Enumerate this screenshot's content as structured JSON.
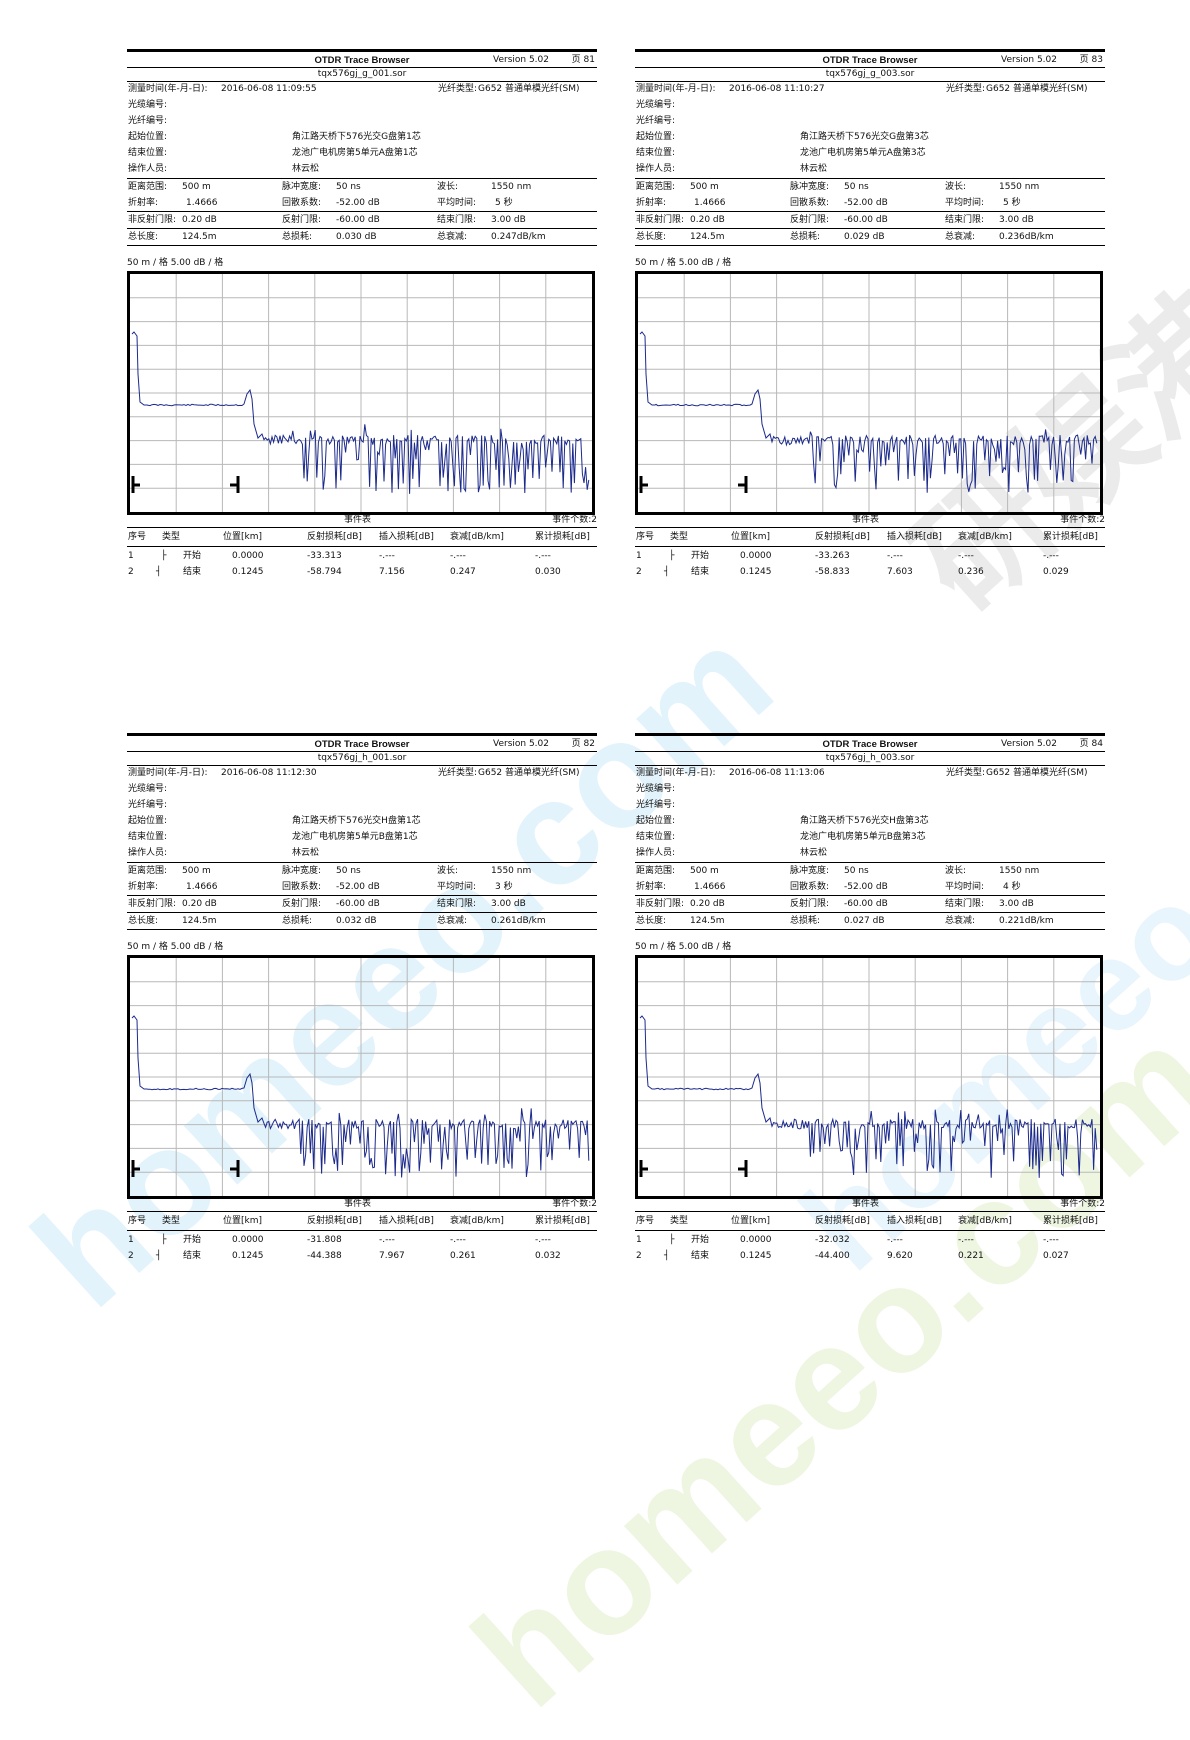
{
  "labels": {
    "measure_time": "测量时间(年-月-日):",
    "fiber_type": "光纤类型:",
    "cable_no": "光缆编号:",
    "fiber_no": "光纤编号:",
    "start_loc": "起始位置:",
    "end_loc": "结束位置:",
    "operator": "操作人员:",
    "range": "距离范围:",
    "pulse": "脉冲宽度:",
    "wavelength": "波长:",
    "ior": "折射率:",
    "backscatter": "回散系数:",
    "avg_time": "平均时间:",
    "nonrefl": "非反射门限:",
    "refl": "反射门限:",
    "end_thresh": "结束门限:",
    "total_len": "总长度:",
    "total_loss": "总损耗:",
    "total_atten": "总衰减:",
    "scale": "50 m / 格 5.00 dB / 格",
    "event_table": "事件表",
    "event_count": "事件个数:2",
    "cols": [
      "序号",
      "类型",
      "位置[km]",
      "反射损耗[dB]",
      "插入损耗[dB]",
      "衰减[dB/km]",
      "累计损耗[dB]"
    ]
  },
  "colors": {
    "trace": "#1c2a8c",
    "grid": "#b8b8b8",
    "frame": "#000000"
  },
  "icons": {
    "start": "start-marker-icon",
    "end": "end-marker-icon"
  },
  "watermark": {
    "text_1": "homeeo.com",
    "text_2": "homeeo.com",
    "text_3": "homeeo.com",
    "text_4": "研娱港",
    "color_1": "#d2ecf8",
    "color_2": "#e8f4d8",
    "color_3": "#c8c8c8"
  },
  "reports": [
    {
      "title": "OTDR Trace Browser",
      "version": "Version 5.02",
      "page": "页 81",
      "filename": "tqx576gj_g_001.sor",
      "measure_time": "2016-06-08 11:09:55",
      "fiber_type": "G652 普通单模光纤(SM)",
      "start_loc": "角江路天桥下576光交G盘第1芯",
      "end_loc": "龙池广电机房第5单元A盘第1芯",
      "operator": "林云松",
      "range": "500 m",
      "pulse": "50 ns",
      "wavelength": "1550 nm",
      "ior": "1.4666",
      "backscatter": "-52.00 dB",
      "avg_time": "5 秒",
      "nonrefl": "0.20 dB",
      "refl": "-60.00 dB",
      "end_thresh": "3.00 dB",
      "total_len": "124.5m",
      "total_loss": "0.030 dB",
      "total_atten": "0.247dB/km",
      "events": [
        {
          "no": "1",
          "type": "开始",
          "pos": "0.0000",
          "refl": "-33.313",
          "ins": "-.---",
          "att": "-.---",
          "cum": "-.---"
        },
        {
          "no": "2",
          "type": "结束",
          "pos": "0.1245",
          "refl": "-58.794",
          "ins": "7.156",
          "att": "0.247",
          "cum": "0.030"
        }
      ]
    },
    {
      "title": "OTDR Trace Browser",
      "version": "Version 5.02",
      "page": "页 83",
      "filename": "tqx576gj_g_003.sor",
      "measure_time": "2016-06-08 11:10:27",
      "fiber_type": "G652 普通单模光纤(SM)",
      "start_loc": "角江路天桥下576光交G盘第3芯",
      "end_loc": "龙池广电机房第5单元A盘第3芯",
      "operator": "林云松",
      "range": "500 m",
      "pulse": "50 ns",
      "wavelength": "1550 nm",
      "ior": "1.4666",
      "backscatter": "-52.00 dB",
      "avg_time": "5 秒",
      "nonrefl": "0.20 dB",
      "refl": "-60.00 dB",
      "end_thresh": "3.00 dB",
      "total_len": "124.5m",
      "total_loss": "0.029 dB",
      "total_atten": "0.236dB/km",
      "events": [
        {
          "no": "1",
          "type": "开始",
          "pos": "0.0000",
          "refl": "-33.263",
          "ins": "-.---",
          "att": "-.---",
          "cum": "-.---"
        },
        {
          "no": "2",
          "type": "结束",
          "pos": "0.1245",
          "refl": "-58.833",
          "ins": "7.603",
          "att": "0.236",
          "cum": "0.029"
        }
      ]
    },
    {
      "title": "OTDR Trace Browser",
      "version": "Version 5.02",
      "page": "页 82",
      "filename": "tqx576gj_h_001.sor",
      "measure_time": "2016-06-08 11:12:30",
      "fiber_type": "G652 普通单模光纤(SM)",
      "start_loc": "角江路天桥下576光交H盘第1芯",
      "end_loc": "龙池广电机房第5单元B盘第1芯",
      "operator": "林云松",
      "range": "500 m",
      "pulse": "50 ns",
      "wavelength": "1550 nm",
      "ior": "1.4666",
      "backscatter": "-52.00 dB",
      "avg_time": "3 秒",
      "nonrefl": "0.20 dB",
      "refl": "-60.00 dB",
      "end_thresh": "3.00 dB",
      "total_len": "124.5m",
      "total_loss": "0.032 dB",
      "total_atten": "0.261dB/km",
      "events": [
        {
          "no": "1",
          "type": "开始",
          "pos": "0.0000",
          "refl": "-31.808",
          "ins": "-.---",
          "att": "-.---",
          "cum": "-.---"
        },
        {
          "no": "2",
          "type": "结束",
          "pos": "0.1245",
          "refl": "-44.388",
          "ins": "7.967",
          "att": "0.261",
          "cum": "0.032"
        }
      ]
    },
    {
      "title": "OTDR Trace Browser",
      "version": "Version 5.02",
      "page": "页 84",
      "filename": "tqx576gj_h_003.sor",
      "measure_time": "2016-06-08 11:13:06",
      "fiber_type": "G652 普通单模光纤(SM)",
      "start_loc": "角江路天桥下576光交H盘第3芯",
      "end_loc": "龙池广电机房第5单元B盘第3芯",
      "operator": "林云松",
      "range": "500 m",
      "pulse": "50 ns",
      "wavelength": "1550 nm",
      "ior": "1.4666",
      "backscatter": "-52.00 dB",
      "avg_time": "4 秒",
      "nonrefl": "0.20 dB",
      "refl": "-60.00 dB",
      "end_thresh": "3.00 dB",
      "total_len": "124.5m",
      "total_loss": "0.027 dB",
      "total_atten": "0.221dB/km",
      "events": [
        {
          "no": "1",
          "type": "开始",
          "pos": "0.0000",
          "refl": "-32.032",
          "ins": "-.---",
          "att": "-.---",
          "cum": "-.---"
        },
        {
          "no": "2",
          "type": "结束",
          "pos": "0.1245",
          "refl": "-44.400",
          "ins": "9.620",
          "att": "0.221",
          "cum": "0.027"
        }
      ]
    }
  ]
}
